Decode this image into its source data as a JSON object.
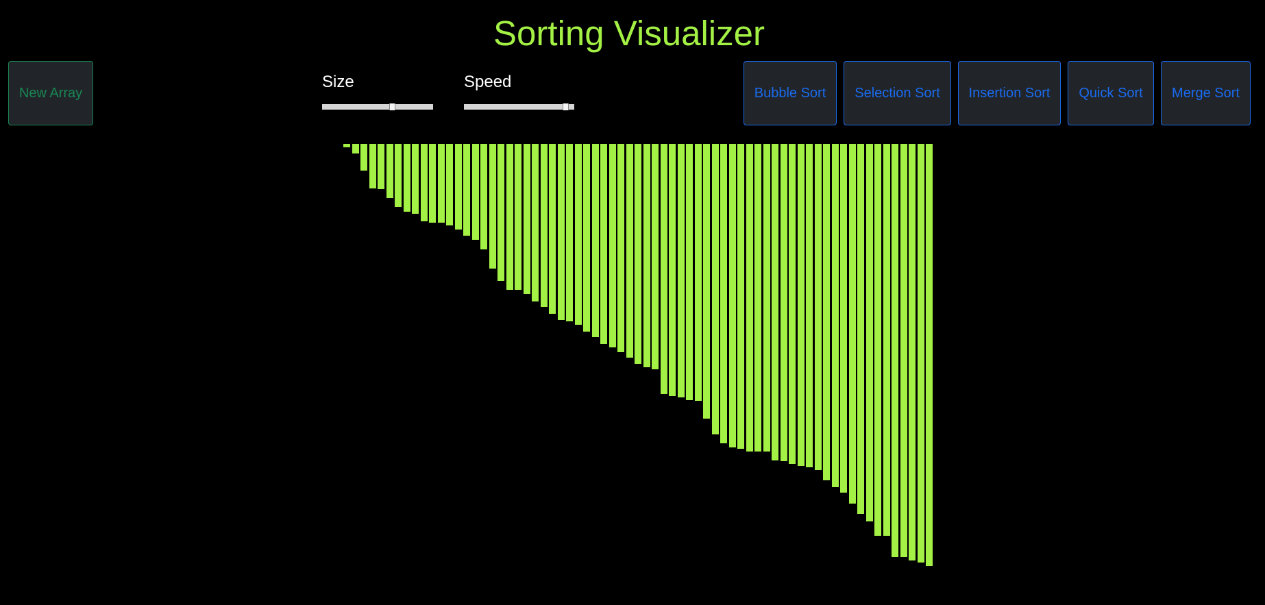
{
  "header": {
    "title": "Sorting Visualizer"
  },
  "controls": {
    "new_array_label": "New Array",
    "size": {
      "label": "Size",
      "value_fraction": 0.64
    },
    "speed": {
      "label": "Speed",
      "value_fraction": 0.95
    }
  },
  "algorithms": [
    {
      "label": "Bubble Sort"
    },
    {
      "label": "Selection Sort"
    },
    {
      "label": "Insertion Sort"
    },
    {
      "label": "Quick Sort"
    },
    {
      "label": "Merge Sort"
    }
  ],
  "colors": {
    "bar": "#a4f145",
    "accent": "#1a6bf0",
    "new_array": "#198754"
  },
  "array_values": [
    6,
    15,
    43,
    72,
    73,
    88,
    102,
    110,
    113,
    125,
    128,
    128,
    132,
    139,
    149,
    156,
    171,
    202,
    222,
    237,
    237,
    243,
    255,
    264,
    275,
    286,
    288,
    293,
    304,
    313,
    324,
    330,
    338,
    347,
    357,
    362,
    366,
    405,
    409,
    411,
    415,
    417,
    446,
    471,
    485,
    492,
    494,
    499,
    499,
    499,
    513,
    514,
    519,
    522,
    524,
    529,
    545,
    557,
    566,
    583,
    600,
    612,
    636,
    636,
    670,
    670,
    676,
    679,
    684
  ]
}
